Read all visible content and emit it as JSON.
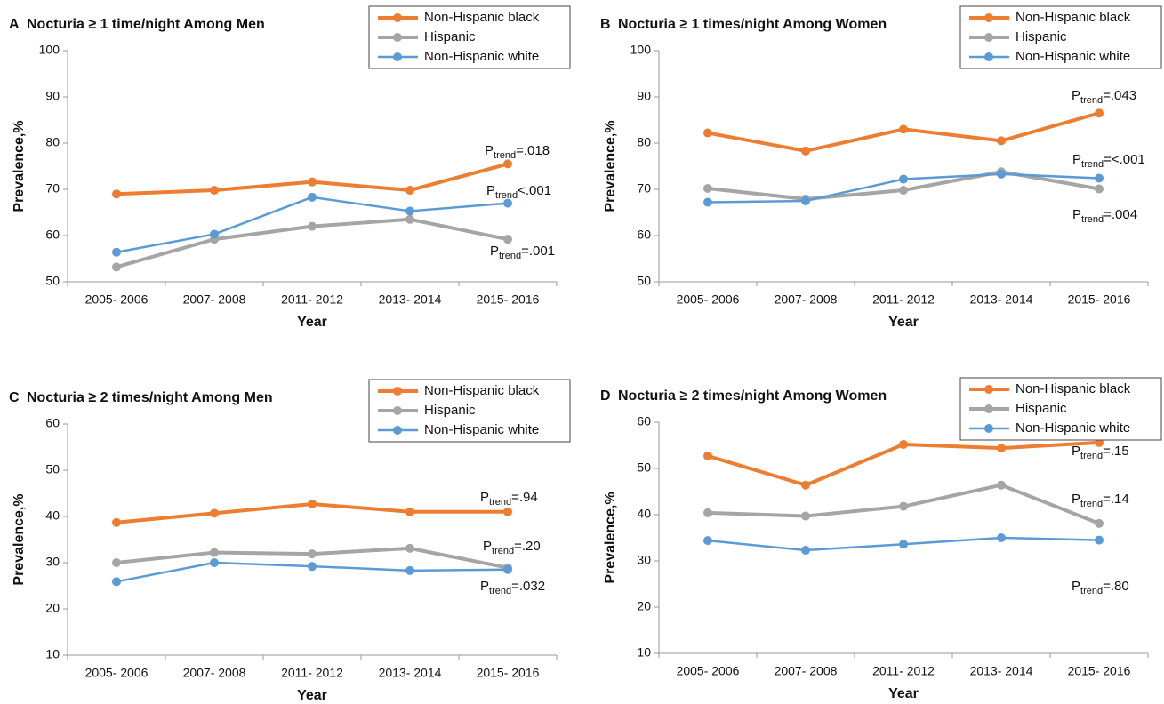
{
  "chart_data": [
    {
      "type": "line",
      "panel": "A",
      "title": "Nocturia ≥ 1 time/night Among Men",
      "xlabel": "Year",
      "ylabel": "Prevalence,%",
      "categories": [
        "2005- 2006",
        "2007- 2008",
        "2011- 2012",
        "2013- 2014",
        "2015- 2016"
      ],
      "ylim": [
        50,
        100
      ],
      "yticks": [
        50,
        60,
        70,
        80,
        90,
        100
      ],
      "legend": "top-right",
      "series": [
        {
          "name": "Non-Hispanic black",
          "color": "#ED7D31",
          "width": 4,
          "values": [
            69,
            69.8,
            71.6,
            69.8,
            75.5
          ]
        },
        {
          "name": "Hispanic",
          "color": "#A5A5A5",
          "width": 4,
          "values": [
            53.2,
            59.2,
            62,
            63.5,
            59.2
          ]
        },
        {
          "name": "Non-Hispanic white",
          "color": "#5B9BD5",
          "width": 2.5,
          "values": [
            56.4,
            60.3,
            68.3,
            65.3,
            67
          ]
        }
      ],
      "annotations": [
        {
          "symbol": "P",
          "subscript": "trend",
          "text": "=.018"
        },
        {
          "symbol": "P",
          "subscript": "trend",
          "text": "<.001"
        },
        {
          "symbol": "P",
          "subscript": "trend",
          "text": "=.001"
        }
      ]
    },
    {
      "type": "line",
      "panel": "B",
      "title": "Nocturia ≥ 1 times/night Among Women",
      "xlabel": "Year",
      "ylabel": "Prevalence,%",
      "categories": [
        "2005- 2006",
        "2007- 2008",
        "2011- 2012",
        "2013- 2014",
        "2015- 2016"
      ],
      "ylim": [
        50,
        100
      ],
      "yticks": [
        50,
        60,
        70,
        80,
        90,
        100
      ],
      "legend": "top-right",
      "series": [
        {
          "name": "Non-Hispanic black",
          "color": "#ED7D31",
          "width": 4,
          "values": [
            82.2,
            78.3,
            83,
            80.5,
            86.5
          ]
        },
        {
          "name": "Hispanic",
          "color": "#A5A5A5",
          "width": 4,
          "values": [
            70.2,
            67.9,
            69.8,
            73.8,
            70.1
          ]
        },
        {
          "name": "Non-Hispanic white",
          "color": "#5B9BD5",
          "width": 2.5,
          "values": [
            67.2,
            67.5,
            72.2,
            73.3,
            72.4
          ]
        }
      ],
      "annotations": [
        {
          "symbol": "P",
          "subscript": "trend",
          "text": "=.043"
        },
        {
          "symbol": "P",
          "subscript": "trend",
          "text": "=<.001"
        },
        {
          "symbol": "P",
          "subscript": "trend",
          "text": "=.004"
        }
      ]
    },
    {
      "type": "line",
      "panel": "C",
      "title": "Nocturia ≥ 2 times/night Among Men",
      "xlabel": "Year",
      "ylabel": "Prevalence,%",
      "categories": [
        "2005- 2006",
        "2007- 2008",
        "2011- 2012",
        "2013- 2014",
        "2015- 2016"
      ],
      "ylim": [
        10,
        60
      ],
      "yticks": [
        10,
        20,
        30,
        40,
        50,
        60
      ],
      "legend": "top-right",
      "series": [
        {
          "name": "Non-Hispanic black",
          "color": "#ED7D31",
          "width": 4,
          "values": [
            38.7,
            40.7,
            42.7,
            41,
            41
          ]
        },
        {
          "name": "Hispanic",
          "color": "#A5A5A5",
          "width": 4,
          "values": [
            30,
            32.2,
            31.9,
            33.1,
            28.9
          ]
        },
        {
          "name": "Non-Hispanic white",
          "color": "#5B9BD5",
          "width": 2.5,
          "values": [
            25.9,
            30,
            29.2,
            28.3,
            28.5
          ]
        }
      ],
      "annotations": [
        {
          "symbol": "P",
          "subscript": "trend",
          "text": "=.94"
        },
        {
          "symbol": "P",
          "subscript": "trend",
          "text": "=.20"
        },
        {
          "symbol": "P",
          "subscript": "trend",
          "text": "=.032"
        }
      ]
    },
    {
      "type": "line",
      "panel": "D",
      "title": "Nocturia ≥ 2 times/night Among Women",
      "xlabel": "Year",
      "ylabel": "Prevalence,%",
      "categories": [
        "2005- 2006",
        "2007- 2008",
        "2011- 2012",
        "2013- 2014",
        "2015- 2016"
      ],
      "ylim": [
        10,
        60
      ],
      "yticks": [
        10,
        20,
        30,
        40,
        50,
        60
      ],
      "legend": "top-right",
      "series": [
        {
          "name": "Non-Hispanic black",
          "color": "#ED7D31",
          "width": 4,
          "values": [
            52.7,
            46.4,
            55.2,
            54.4,
            55.6
          ]
        },
        {
          "name": "Hispanic",
          "color": "#A5A5A5",
          "width": 4,
          "values": [
            40.4,
            39.7,
            41.8,
            46.4,
            38.1
          ]
        },
        {
          "name": "Non-Hispanic white",
          "color": "#5B9BD5",
          "width": 2.5,
          "values": [
            34.4,
            32.3,
            33.6,
            35,
            34.5
          ]
        }
      ],
      "annotations": [
        {
          "symbol": "P",
          "subscript": "trend",
          "text": "=.15"
        },
        {
          "symbol": "P",
          "subscript": "trend",
          "text": "=.14"
        },
        {
          "symbol": "P",
          "subscript": "trend",
          "text": "=.80"
        }
      ]
    }
  ]
}
